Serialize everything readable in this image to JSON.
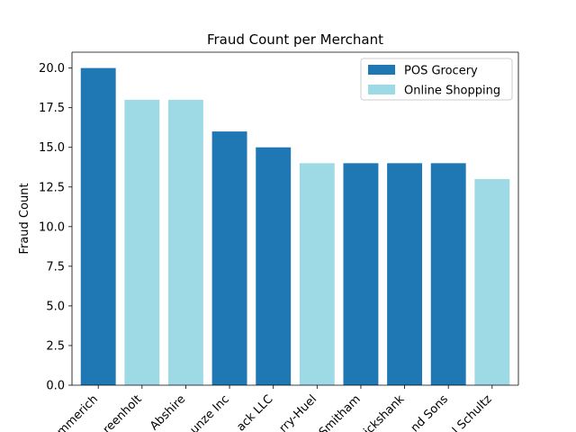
{
  "chart_data": {
    "type": "bar",
    "title": "Fraud Count per Merchant",
    "xlabel": "",
    "ylabel": "Fraud Count",
    "ylim": [
      0,
      21
    ],
    "yticks": [
      "0.0",
      "2.5",
      "5.0",
      "7.5",
      "10.0",
      "12.5",
      "15.0",
      "17.5",
      "20.0"
    ],
    "grid": false,
    "legend_position": "top-right",
    "categories": [
      "mmerich",
      "reenholt",
      "Abshire",
      "unze Inc",
      "ack LLC",
      "rry-Huel",
      "Smitham",
      "ickshank",
      "nd Sons",
      "l Schultz"
    ],
    "values": [
      20,
      18,
      18,
      16,
      15,
      14,
      14,
      14,
      14,
      13
    ],
    "bar_series": [
      "POS Grocery",
      "Online Shopping",
      "Online Shopping",
      "POS Grocery",
      "POS Grocery",
      "Online Shopping",
      "POS Grocery",
      "POS Grocery",
      "POS Grocery",
      "Online Shopping"
    ],
    "series": [
      {
        "name": "POS Grocery",
        "color": "#1f77b4"
      },
      {
        "name": "Online Shopping",
        "color": "#9edae5"
      }
    ]
  }
}
